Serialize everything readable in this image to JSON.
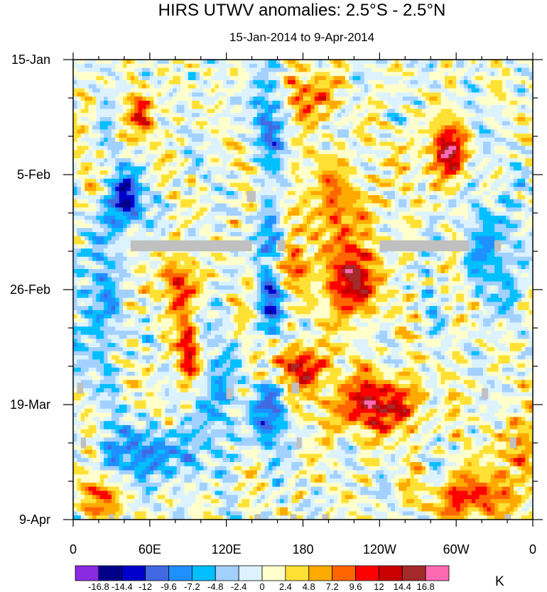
{
  "chart_data": {
    "type": "heatmap",
    "title": "HIRS UTWV anomalies: 2.5°S - 2.5°N",
    "subtitle": "15-Jan-2014 to 9-Apr-2014",
    "xlabel": "",
    "ylabel": "",
    "x_tick_labels": [
      "0",
      "60E",
      "120E",
      "180",
      "120W",
      "60W",
      "0"
    ],
    "x_tick_longitudes": [
      0,
      60,
      120,
      180,
      240,
      300,
      360
    ],
    "xlim": [
      0,
      360
    ],
    "y_tick_labels": [
      "15-Jan",
      "5-Feb",
      "26-Feb",
      "19-Mar",
      "9-Apr"
    ],
    "y_tick_days": [
      0,
      21,
      42,
      63,
      84
    ],
    "ylim_days": [
      0,
      84
    ],
    "y_axis_reversed": true,
    "colorbar": {
      "unit": "K",
      "levels": [
        "-16.8",
        "-14.4",
        "-12",
        "-9.6",
        "-7.2",
        "-4.8",
        "-2.4",
        "0",
        "2.4",
        "4.8",
        "7.2",
        "9.6",
        "12",
        "14.4",
        "16.8"
      ],
      "colors": [
        "#8a2be2",
        "#00008b",
        "#0000cd",
        "#4169e1",
        "#1e90ff",
        "#00bfff",
        "#a3d1ff",
        "#dcf3ff",
        "#ffffcc",
        "#ffe135",
        "#ffaa00",
        "#ff6600",
        "#ff0000",
        "#c80000",
        "#a52a2a",
        "#ff69b4"
      ]
    },
    "missing_data_color": "#c0c0c0",
    "features": [
      {
        "type": "warm",
        "lon": 290,
        "day": 17,
        "rx": 16,
        "ry": 5,
        "amp": 14
      },
      {
        "type": "warm",
        "lon": 218,
        "day": 41,
        "rx": 18,
        "ry": 6,
        "amp": 15
      },
      {
        "type": "warm",
        "lon": 236,
        "day": 63,
        "rx": 35,
        "ry": 5,
        "amp": 14
      },
      {
        "type": "warm",
        "lon": 182,
        "day": 7,
        "rx": 18,
        "ry": 5,
        "amp": 12
      },
      {
        "type": "warm",
        "lon": 165,
        "day": 38,
        "rx": 14,
        "ry": 3,
        "amp": 11
      },
      {
        "type": "warm",
        "lon": 178,
        "day": 56,
        "rx": 22,
        "ry": 4,
        "amp": 12
      },
      {
        "type": "warm",
        "lon": 90,
        "day": 54,
        "rx": 8,
        "ry": 6,
        "amp": 14
      },
      {
        "type": "warm",
        "lon": 84,
        "day": 41,
        "rx": 12,
        "ry": 5,
        "amp": 12
      },
      {
        "type": "warm",
        "lon": 55,
        "day": 10,
        "rx": 10,
        "ry": 4,
        "amp": 10
      },
      {
        "type": "warm",
        "lon": 310,
        "day": 80,
        "rx": 30,
        "ry": 4,
        "amp": 11
      },
      {
        "type": "warm",
        "lon": 205,
        "day": 28,
        "rx": 30,
        "ry": 10,
        "amp": 7
      },
      {
        "type": "warm",
        "lon": 20,
        "day": 80,
        "rx": 20,
        "ry": 4,
        "amp": 8
      },
      {
        "type": "warm",
        "lon": 345,
        "day": 72,
        "rx": 16,
        "ry": 6,
        "amp": 8
      },
      {
        "type": "cold",
        "lon": 42,
        "day": 26,
        "rx": 12,
        "ry": 5,
        "amp": 16
      },
      {
        "type": "cold",
        "lon": 155,
        "day": 39,
        "rx": 12,
        "ry": 12,
        "amp": 9
      },
      {
        "type": "cold",
        "lon": 160,
        "day": 10,
        "rx": 20,
        "ry": 8,
        "amp": 8
      },
      {
        "type": "cold",
        "lon": 60,
        "day": 72,
        "rx": 40,
        "ry": 5,
        "amp": 9
      },
      {
        "type": "cold",
        "lon": 15,
        "day": 45,
        "rx": 18,
        "ry": 14,
        "amp": 7
      },
      {
        "type": "cold",
        "lon": 150,
        "day": 65,
        "rx": 20,
        "ry": 6,
        "amp": 8
      },
      {
        "type": "cold",
        "lon": 330,
        "day": 35,
        "rx": 25,
        "ry": 10,
        "amp": 6
      },
      {
        "type": "cold",
        "lon": 110,
        "day": 60,
        "rx": 14,
        "ry": 8,
        "amp": 7
      }
    ],
    "missing_regions": [
      {
        "lon": [
          45,
          140
        ],
        "day": [
          33,
          35
        ]
      },
      {
        "lon": [
          240,
          310
        ],
        "day": [
          33,
          35
        ]
      },
      {
        "lon": [
          136,
          143
        ],
        "day": [
          24,
          26
        ]
      },
      {
        "lon": [
          160,
          166
        ],
        "day": [
          33,
          35
        ]
      },
      {
        "lon": [
          330,
          335
        ],
        "day": [
          33,
          35
        ]
      },
      {
        "lon": [
          3,
          8
        ],
        "day": [
          59,
          61
        ]
      },
      {
        "lon": [
          120,
          125
        ],
        "day": [
          60,
          62
        ]
      },
      {
        "lon": [
          171,
          177
        ],
        "day": [
          59,
          61
        ]
      },
      {
        "lon": [
          320,
          325
        ],
        "day": [
          60,
          62
        ]
      },
      {
        "lon": [
          6,
          10
        ],
        "day": [
          69,
          71
        ]
      },
      {
        "lon": [
          175,
          179
        ],
        "day": [
          69,
          71
        ]
      },
      {
        "lon": [
          342,
          347
        ],
        "day": [
          69,
          71
        ]
      },
      {
        "lon": [
          28,
          32
        ],
        "day": [
          83,
          84
        ]
      },
      {
        "lon": [
          142,
          147
        ],
        "day": [
          83,
          84
        ]
      },
      {
        "lon": [
          170,
          175
        ],
        "day": [
          83,
          84
        ]
      },
      {
        "lon": [
          195,
          200
        ],
        "day": [
          83,
          84
        ]
      },
      {
        "lon": [
          338,
          343
        ],
        "day": [
          83,
          84
        ]
      }
    ]
  }
}
